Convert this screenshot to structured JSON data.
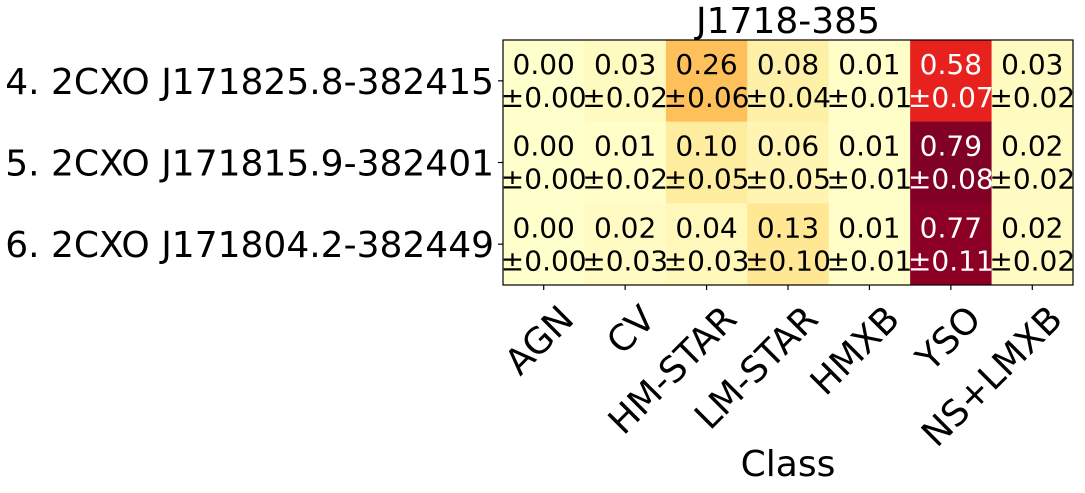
{
  "chart_data": {
    "type": "heatmap",
    "title": "J1718-385",
    "xlabel": "Class",
    "ylabel": "",
    "columns": [
      "AGN",
      "CV",
      "HM-STAR",
      "LM-STAR",
      "HMXB",
      "YSO",
      "NS+LMXB"
    ],
    "rows": [
      "4. 2CXO J171825.8-382415",
      "5. 2CXO J171815.9-382401",
      "6. 2CXO J171804.2-382449"
    ],
    "values": [
      [
        0.0,
        0.03,
        0.26,
        0.08,
        0.01,
        0.58,
        0.03
      ],
      [
        0.0,
        0.01,
        0.1,
        0.06,
        0.01,
        0.79,
        0.02
      ],
      [
        0.0,
        0.02,
        0.04,
        0.13,
        0.01,
        0.77,
        0.02
      ]
    ],
    "errors": [
      [
        0.0,
        0.02,
        0.06,
        0.04,
        0.01,
        0.07,
        0.02
      ],
      [
        0.0,
        0.02,
        0.05,
        0.05,
        0.01,
        0.08,
        0.02
      ],
      [
        0.0,
        0.03,
        0.03,
        0.1,
        0.01,
        0.11,
        0.02
      ]
    ],
    "value_labels": [
      [
        "0.00",
        "0.03",
        "0.26",
        "0.08",
        "0.01",
        "0.58",
        "0.03"
      ],
      [
        "0.00",
        "0.01",
        "0.10",
        "0.06",
        "0.01",
        "0.79",
        "0.02"
      ],
      [
        "0.00",
        "0.02",
        "0.04",
        "0.13",
        "0.01",
        "0.77",
        "0.02"
      ]
    ],
    "error_labels": [
      [
        "±0.00",
        "±0.02",
        "±0.06",
        "±0.04",
        "±0.01",
        "±0.07",
        "±0.02"
      ],
      [
        "±0.00",
        "±0.02",
        "±0.05",
        "±0.05",
        "±0.01",
        "±0.08",
        "±0.02"
      ],
      [
        "±0.00",
        "±0.03",
        "±0.03",
        "±0.10",
        "±0.01",
        "±0.11",
        "±0.02"
      ]
    ],
    "colormap": "YlOrRd",
    "value_range": [
      0,
      0.79
    ],
    "grid": false,
    "legend": "none",
    "colors": {
      "text_dark": "#000000",
      "text_light": "#ffffff",
      "frame": "#000000"
    }
  }
}
